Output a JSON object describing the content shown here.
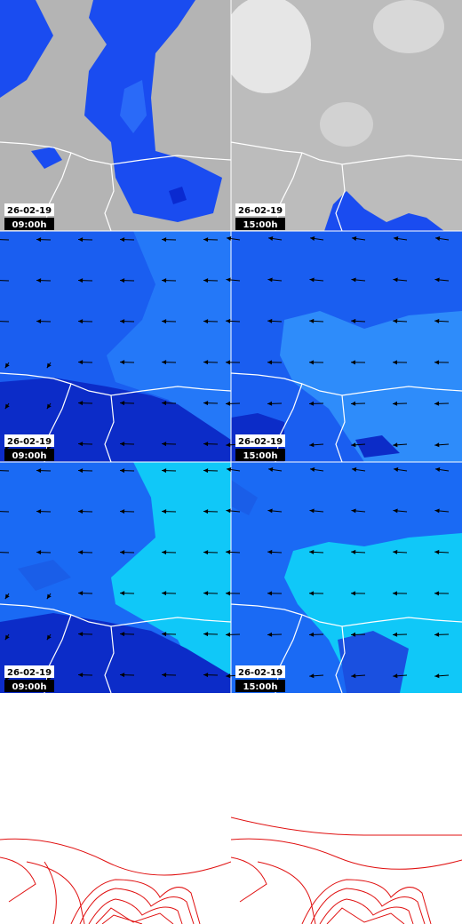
{
  "panels": [
    {
      "date": "26-02-19",
      "time": "09:00h"
    },
    {
      "date": "26-02-19",
      "time": "15:00h"
    },
    {
      "date": "26-02-19",
      "time": "09:00h"
    },
    {
      "date": "26-02-19",
      "time": "15:00h"
    },
    {
      "date": "26-02-19",
      "time": "09:00h"
    },
    {
      "date": "26-02-19",
      "time": "15:00h"
    }
  ]
}
